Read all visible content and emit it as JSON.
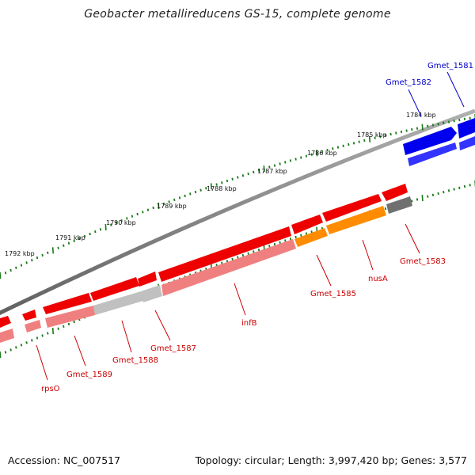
{
  "title": "Geobacter metallireducens GS-15, complete genome",
  "footer": {
    "accession": "Accession: NC_007517",
    "summary": "Topology: circular; Length: 3,997,420 bp; Genes: 3,577"
  },
  "colors": {
    "backbone": "#808080",
    "tick": "#1a7a1a",
    "label_red": "#cc0000",
    "label_blue": "#0000cc",
    "gene_red": "#ee0000",
    "gene_pink": "#f08080",
    "gene_blue": "#0000ee",
    "gene_orange": "#ff8c00",
    "gene_grey": "#707070",
    "gene_lightgrey": "#c0c0c0"
  },
  "scale": {
    "kbp_labels": [
      "1784 kbp",
      "1785 kbp",
      "1786 kbp",
      "1787 kbp",
      "1788 kbp",
      "1789 kbp",
      "1790 kbp",
      "1791 kbp",
      "1792 kbp"
    ]
  },
  "genes": [
    {
      "name": "Gmet_1581",
      "color": "blue"
    },
    {
      "name": "Gmet_1582",
      "color": "blue"
    },
    {
      "name": "Gmet_1583",
      "color": "red"
    },
    {
      "name": "nusA",
      "color": "red"
    },
    {
      "name": "Gmet_1585",
      "color": "red"
    },
    {
      "name": "infB",
      "color": "red"
    },
    {
      "name": "Gmet_1587",
      "color": "red"
    },
    {
      "name": "Gmet_1588",
      "color": "red"
    },
    {
      "name": "Gmet_1589",
      "color": "red"
    },
    {
      "name": "rpsO",
      "color": "red"
    }
  ]
}
